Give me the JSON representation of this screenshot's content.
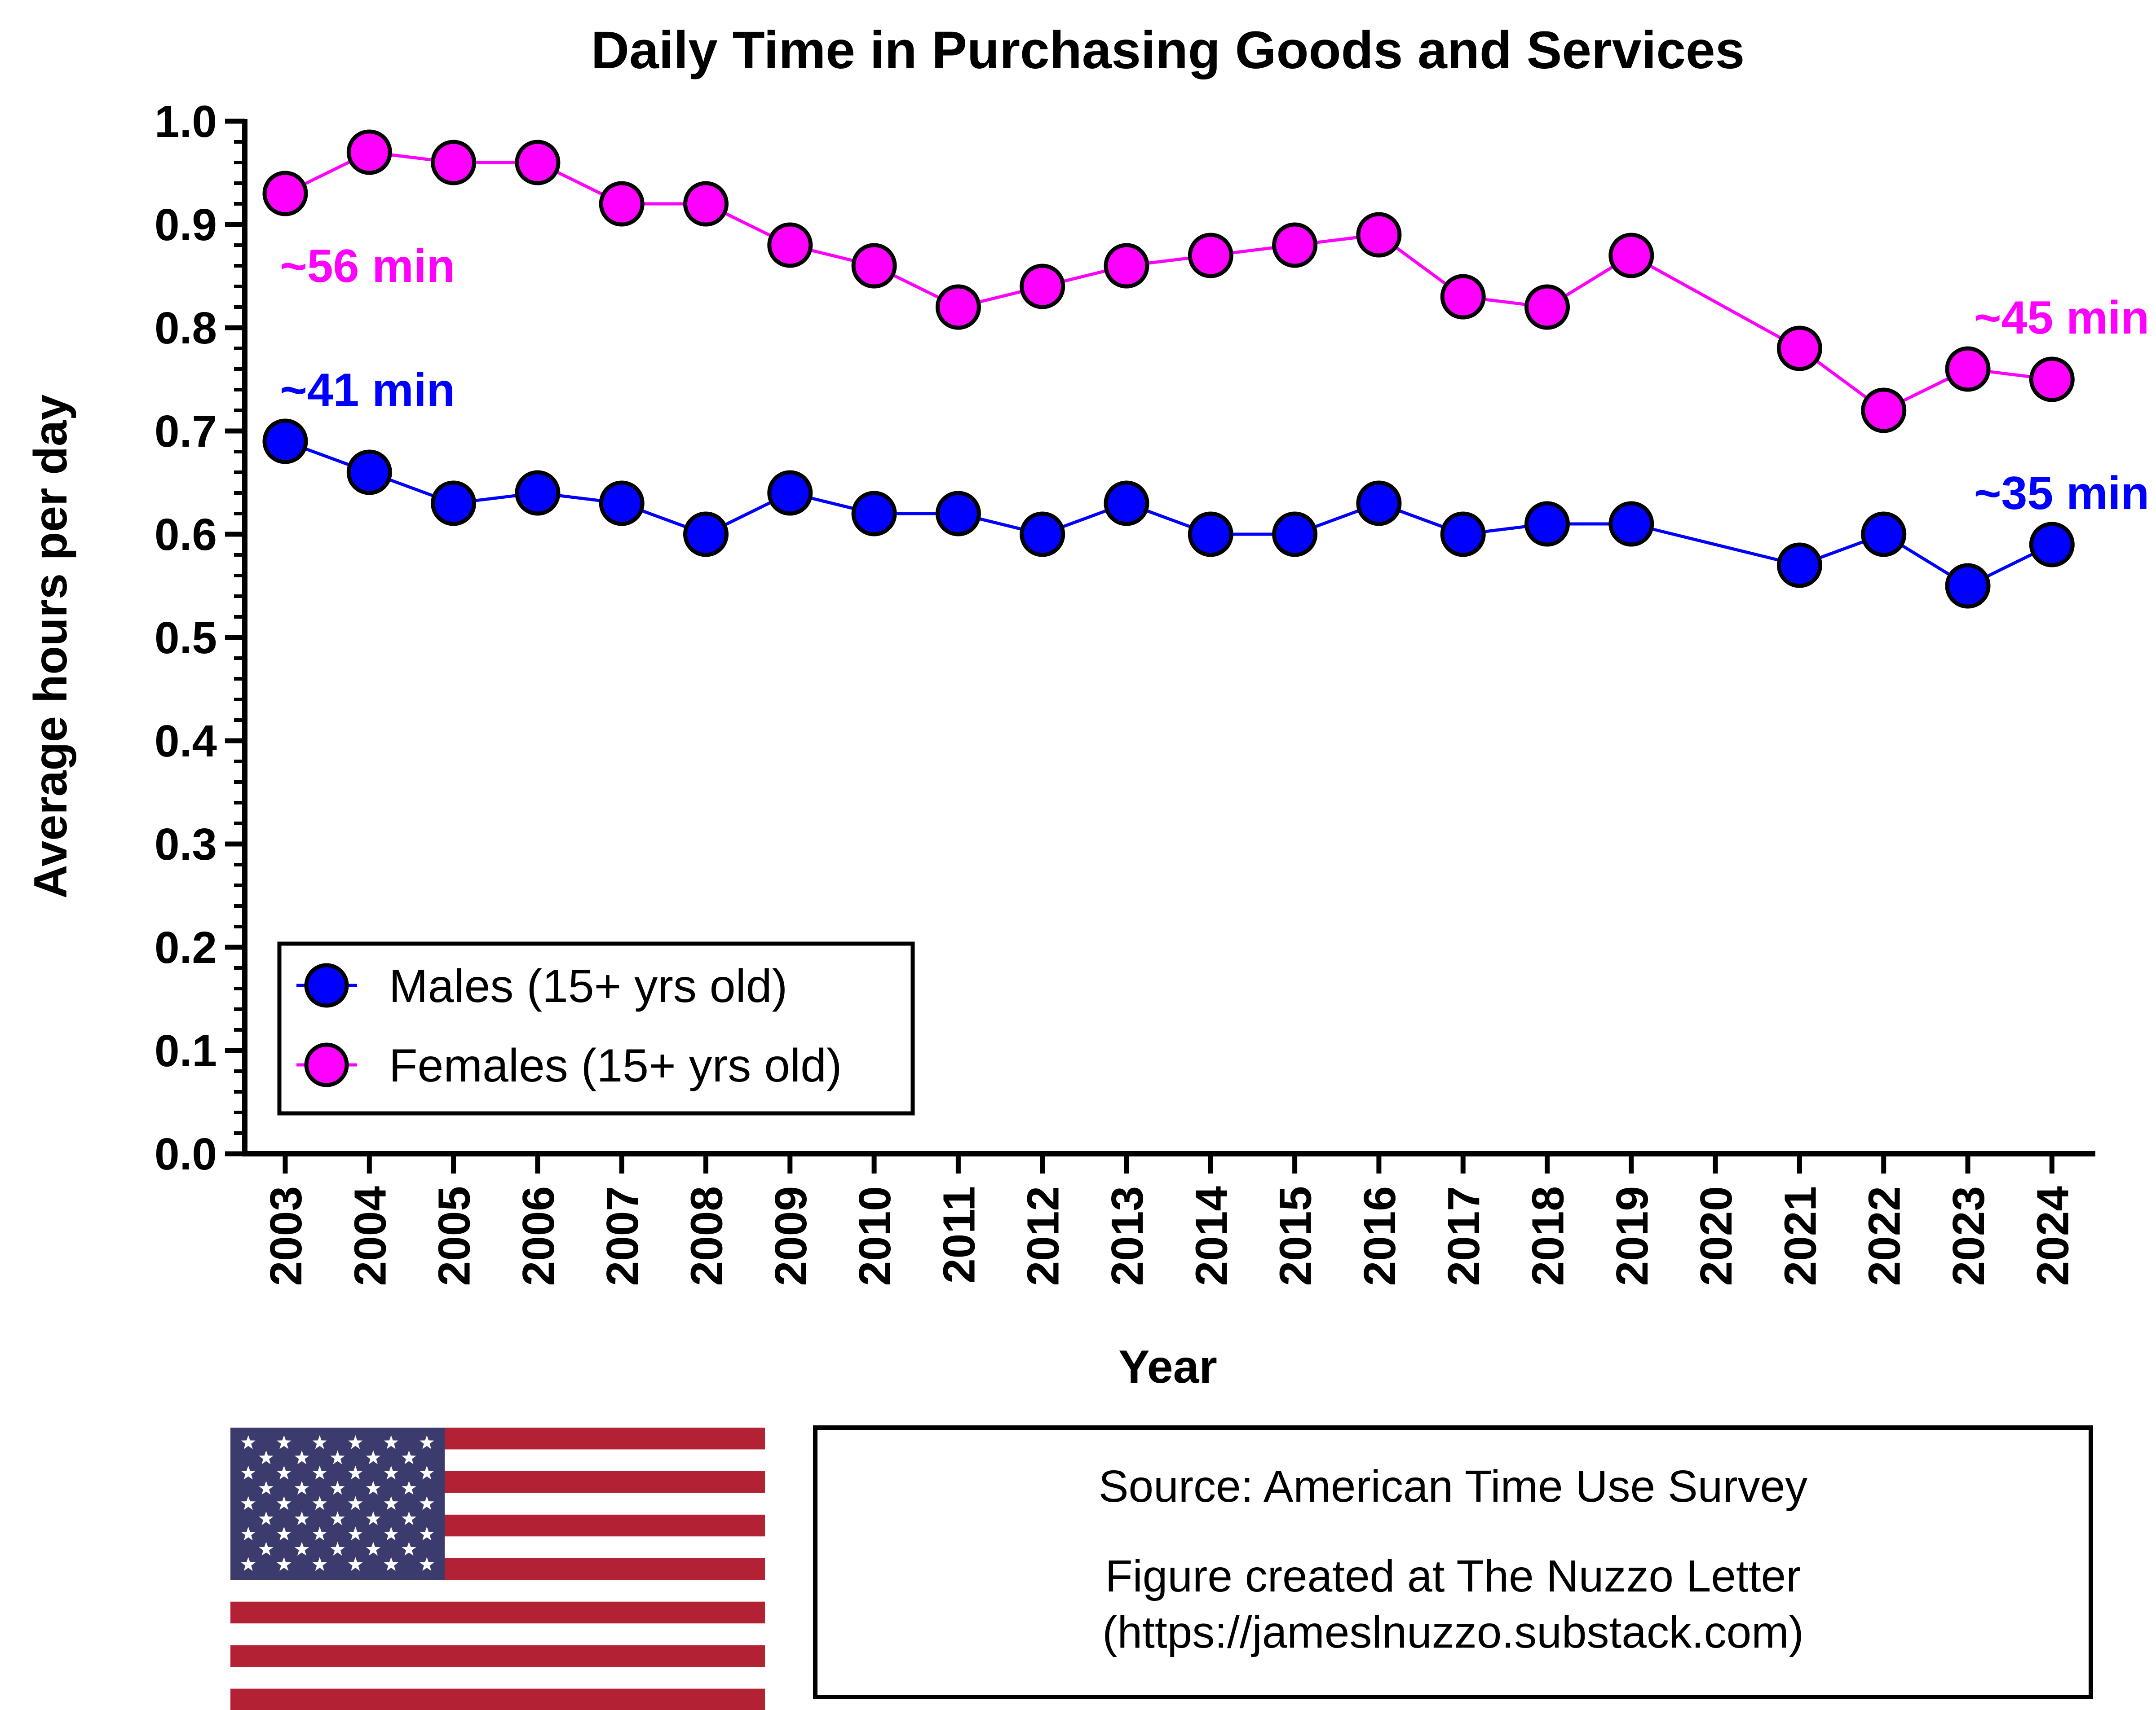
{
  "chart_data": {
    "type": "line",
    "title": "Daily Time in Purchasing Goods and Services",
    "xlabel": "Year",
    "ylabel": "Average hours per day",
    "ylim": [
      0,
      1.0
    ],
    "yticks": [
      "0.0",
      "0.1",
      "0.2",
      "0.3",
      "0.4",
      "0.5",
      "0.6",
      "0.7",
      "0.8",
      "0.9",
      "1.0"
    ],
    "x": [
      "2003",
      "2004",
      "2005",
      "2006",
      "2007",
      "2008",
      "2009",
      "2010",
      "2011",
      "2012",
      "2013",
      "2014",
      "2015",
      "2016",
      "2017",
      "2018",
      "2019",
      "2020",
      "2021",
      "2022",
      "2023",
      "2024"
    ],
    "series": [
      {
        "name": "Males (15+ yrs old)",
        "color": "#0000ff",
        "values": [
          0.69,
          0.66,
          0.63,
          0.64,
          0.63,
          0.6,
          0.64,
          0.62,
          0.62,
          0.6,
          0.63,
          0.6,
          0.6,
          0.63,
          0.6,
          0.61,
          0.61,
          null,
          0.57,
          0.6,
          0.55,
          0.59
        ]
      },
      {
        "name": "Females (15+ yrs old)",
        "color": "#ff00ff",
        "values": [
          0.93,
          0.97,
          0.96,
          0.96,
          0.92,
          0.92,
          0.88,
          0.86,
          0.82,
          0.84,
          0.86,
          0.87,
          0.88,
          0.89,
          0.83,
          0.82,
          0.87,
          null,
          0.78,
          0.72,
          0.76,
          0.75
        ]
      }
    ],
    "annotations": [
      {
        "text": "~56 min",
        "color": "#ff00ff",
        "x": "2003",
        "y": 0.86
      },
      {
        "text": "~41 min",
        "color": "#0000ff",
        "x": "2003",
        "y": 0.74
      },
      {
        "text": "~45 min",
        "color": "#ff00ff",
        "x": "2024",
        "y": 0.81
      },
      {
        "text": "~35 min",
        "color": "#0000ff",
        "x": "2024",
        "y": 0.64
      }
    ],
    "legend": {
      "placement": "bottom-left"
    },
    "grid": false
  },
  "footer": {
    "flag_icon": "us-flag-icon",
    "source_line": "Source: American Time Use Survey",
    "credit_line1": "Figure created at The Nuzzo Letter",
    "credit_line2": "(https://jameslnuzzo.substack.com)"
  }
}
